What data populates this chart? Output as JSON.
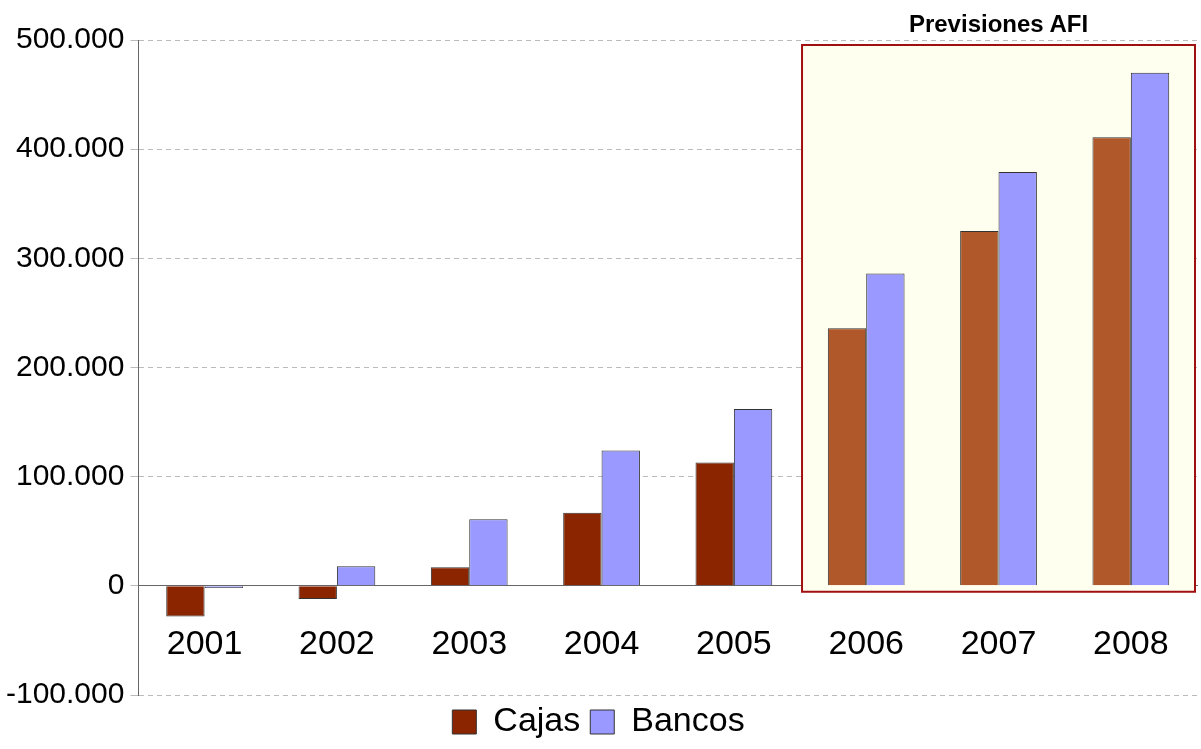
{
  "chart_data": {
    "type": "bar",
    "categories": [
      "2001",
      "2002",
      "2003",
      "2004",
      "2005",
      "2006",
      "2007",
      "2008"
    ],
    "series": [
      {
        "name": "Cajas",
        "color": "#8b2500",
        "colors": [
          "#8b2500",
          "#8b2500",
          "#8b2500",
          "#8b2500",
          "#8b2500",
          "#b0582a",
          "#b0582a",
          "#b0582a"
        ],
        "values": [
          -28000,
          -12000,
          17000,
          67000,
          113000,
          236000,
          325000,
          411000
        ]
      },
      {
        "name": "Bancos",
        "color": "#9999ff",
        "values": [
          -2000,
          18000,
          61000,
          124000,
          162000,
          286000,
          379000,
          470000
        ]
      }
    ],
    "ylim": [
      -100000,
      500000
    ],
    "yticks": [
      {
        "value": -100000,
        "label": "-100.000"
      },
      {
        "value": 0,
        "label": "0"
      },
      {
        "value": 100000,
        "label": "100.000"
      },
      {
        "value": 200000,
        "label": "200.000"
      },
      {
        "value": 300000,
        "label": "300.000"
      },
      {
        "value": 400000,
        "label": "400.000"
      },
      {
        "value": 500000,
        "label": "500.000"
      }
    ],
    "grid": "y",
    "legend": "bottom",
    "bands": [
      {
        "axis": "x",
        "from": "2006",
        "to": "2008",
        "label": "Previsiones AFI",
        "color": "#fffff0"
      }
    ]
  }
}
